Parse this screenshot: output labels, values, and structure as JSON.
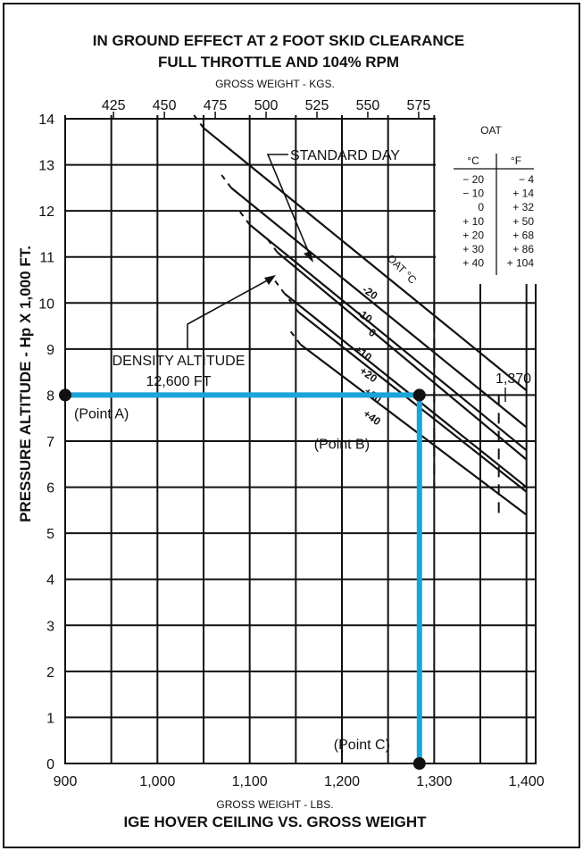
{
  "chart_data": {
    "type": "line",
    "title_lines": [
      "IN GROUND EFFECT AT 2 FOOT SKID CLEARANCE",
      "FULL THROTTLE AND 104% RPM"
    ],
    "caption": "IGE HOVER CEILING VS. GROSS WEIGHT",
    "xlabel": "GROSS WEIGHT - LBS.",
    "x2label": "GROSS WEIGHT - KGS.",
    "ylabel": "PRESSURE ALTITUDE - Hp X 1,000 FT.",
    "xlim": [
      900,
      1410
    ],
    "ylim": [
      0,
      14
    ],
    "grid": true,
    "x_ticks": [
      {
        "value": 900,
        "label": "900"
      },
      {
        "value": 1000,
        "label": "1,000"
      },
      {
        "value": 1100,
        "label": "1,100"
      },
      {
        "value": 1200,
        "label": "1,200"
      },
      {
        "value": 1300,
        "label": "1,300"
      },
      {
        "value": 1400,
        "label": "1,400"
      }
    ],
    "x2_ticks": [
      {
        "value": 425,
        "label": "425"
      },
      {
        "value": 450,
        "label": "450"
      },
      {
        "value": 475,
        "label": "475"
      },
      {
        "value": 500,
        "label": "500"
      },
      {
        "value": 525,
        "label": "525"
      },
      {
        "value": 550,
        "label": "550"
      },
      {
        "value": 575,
        "label": "575"
      }
    ],
    "y_ticks": [
      "0",
      "1",
      "2",
      "3",
      "4",
      "5",
      "6",
      "7",
      "8",
      "9",
      "10",
      "11",
      "12",
      "13",
      "14"
    ],
    "series_label": "OAT °C",
    "series": [
      {
        "name": "-20",
        "x": [
          1050,
          1400
        ],
        "y": [
          13.8,
          8.1
        ]
      },
      {
        "name": "-10",
        "x": [
          1080,
          1400
        ],
        "y": [
          12.5,
          7.3
        ]
      },
      {
        "name": "0",
        "x": [
          1100,
          1400
        ],
        "y": [
          11.7,
          6.8
        ]
      },
      {
        "name": "+10",
        "x": [
          1130,
          1400
        ],
        "y": [
          11.1,
          6.6
        ]
      },
      {
        "name": "+20",
        "x": [
          1138,
          1400
        ],
        "y": [
          10.2,
          6.0
        ]
      },
      {
        "name": "+30",
        "x": [
          1153,
          1400
        ],
        "y": [
          9.8,
          5.9
        ]
      },
      {
        "name": "+40",
        "x": [
          1155,
          1400
        ],
        "y": [
          9.1,
          5.4
        ]
      }
    ],
    "limit_line": {
      "x": 1370,
      "label": "1,370"
    },
    "example_path": [
      {
        "label": "(Point A)",
        "x": 900,
        "y": 8.0
      },
      {
        "label": "(Point B)",
        "x": 1284,
        "y": 8.0
      },
      {
        "label": "(Point C)",
        "x": 1284,
        "y": 0
      }
    ],
    "annotations": {
      "standard_day": "STANDARD DAY",
      "density_altitude_line1": "DENSITY ALTITUDE",
      "density_altitude_line2": "12,600 FT"
    },
    "colors": {
      "example_path": "#1aa5d8",
      "lines": "#111111"
    },
    "oat_table": {
      "title": "OAT",
      "headers": [
        "°C",
        "°F"
      ],
      "rows": [
        [
          "− 20",
          "−   4"
        ],
        [
          "− 10",
          "+  14"
        ],
        [
          "0",
          "+  32"
        ],
        [
          "+ 10",
          "+  50"
        ],
        [
          "+ 20",
          "+  68"
        ],
        [
          "+ 30",
          "+  86"
        ],
        [
          "+ 40",
          "+ 104"
        ]
      ]
    }
  }
}
